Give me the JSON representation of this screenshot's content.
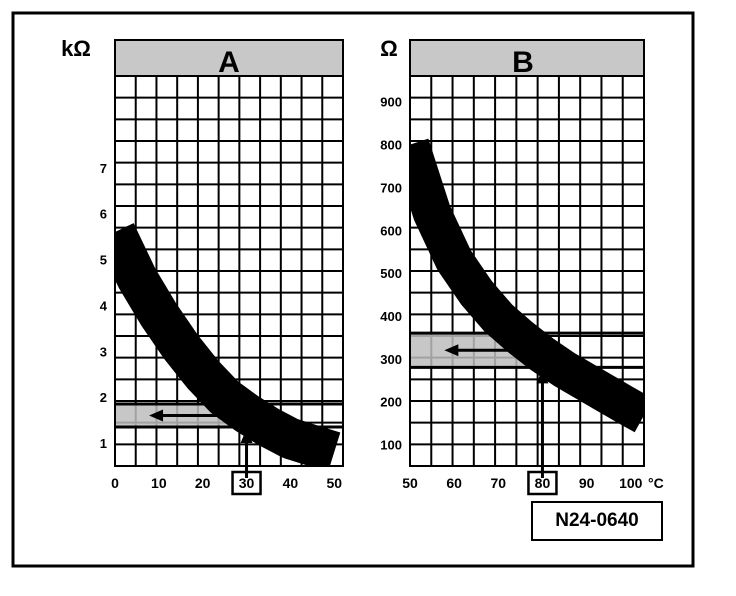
{
  "figure": {
    "reference_code": "N24-0640",
    "colors": {
      "ink": "#000000",
      "header_fill": "#c8c8c8",
      "band_fill": "#bdbdbd",
      "background": "#ffffff"
    }
  },
  "chart_data": [
    {
      "type": "line",
      "panel_label": "A",
      "y_unit": "kΩ",
      "x_unit": "",
      "x_ticks": [
        "0",
        "10",
        "20",
        "30",
        "40",
        "50"
      ],
      "y_ticks": [
        "1",
        "2",
        "3",
        "4",
        "5",
        "6",
        "7"
      ],
      "xlim": [
        0,
        52
      ],
      "ylim": [
        0.5,
        9
      ],
      "highlighted_x_tick": "30",
      "grid": true,
      "curve": {
        "x": [
          0,
          5,
          10,
          15,
          20,
          25,
          30,
          35,
          40,
          45,
          50
        ],
        "y": [
          5.6,
          4.6,
          3.8,
          3.1,
          2.5,
          2.0,
          1.65,
          1.35,
          1.1,
          0.95,
          0.8
        ],
        "band_width": 0.9
      },
      "reading": {
        "x": 30,
        "y_low": 1.35,
        "y_high": 1.85
      }
    },
    {
      "type": "line",
      "panel_label": "B",
      "y_unit": "Ω",
      "x_unit": "°C",
      "x_ticks": [
        "50",
        "60",
        "70",
        "80",
        "90",
        "100"
      ],
      "y_ticks": [
        "100",
        "200",
        "300",
        "400",
        "500",
        "600",
        "700",
        "800",
        "900"
      ],
      "xlim": [
        50,
        103
      ],
      "ylim": [
        50,
        960
      ],
      "highlighted_x_tick": "80",
      "grid": true,
      "curve": {
        "x": [
          50,
          55,
          60,
          65,
          70,
          75,
          80,
          85,
          90,
          95,
          100,
          103
        ],
        "y": [
          800,
          640,
          530,
          455,
          395,
          350,
          310,
          275,
          245,
          215,
          185,
          168
        ],
        "band_width": 90
      },
      "reading": {
        "x": 80,
        "y_low": 280,
        "y_high": 360
      }
    }
  ]
}
